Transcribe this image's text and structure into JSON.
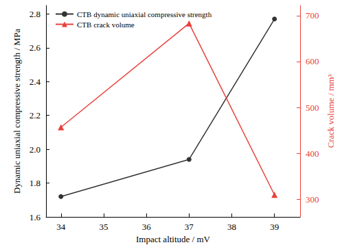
{
  "chart_data": {
    "type": "line",
    "x_label": "Impact altitude / mV",
    "y_label": "Dynamic uniaxial compressive strength / MPa",
    "y2_label": "Crack volume / mm³",
    "xlim": [
      33.65,
      39.6
    ],
    "xticks": [
      34,
      35,
      36,
      37,
      38,
      39
    ],
    "ylim": [
      1.6,
      2.85
    ],
    "yticks": [
      1.6,
      1.8,
      {
        "value": 2,
        "label": "2.0"
      },
      2.2,
      2.4,
      2.6,
      2.8
    ],
    "y2lim": [
      262,
      722
    ],
    "y2ticks": [
      300,
      400,
      500,
      600,
      700
    ],
    "grid": false,
    "legend": "upper left",
    "series": [
      {
        "name": "CTB dynamic uniaxial compressive strength",
        "color": "#333333",
        "marker": "circle",
        "line_style": "solid",
        "x": [
          34,
          37,
          39
        ],
        "values": [
          1.72,
          1.94,
          2.77
        ]
      },
      {
        "name": "CTB crack volume",
        "color": "#e8413c",
        "marker": "triangle",
        "line_style": "solid",
        "axis": "y2",
        "x": [
          34,
          37,
          39
        ],
        "values": [
          457,
          683,
          310
        ]
      }
    ]
  }
}
